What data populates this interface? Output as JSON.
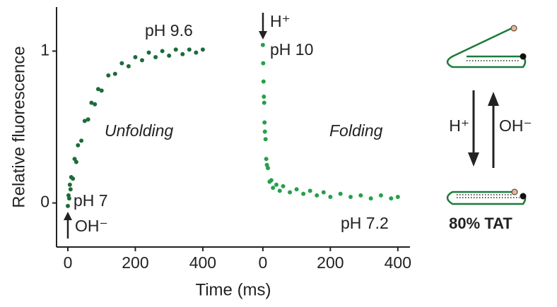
{
  "chart_data": [
    {
      "type": "scatter",
      "y_label": "Relative fluorescence",
      "x_label": "Time (ms)",
      "color": "#1d6b3a",
      "xlim": [
        -33.5,
        440
      ],
      "xticks": [
        0,
        200,
        400
      ],
      "ylim": [
        -0.29,
        1.29
      ],
      "yticks": [
        0,
        1
      ],
      "annotations": [
        "pH 9.6",
        "pH 7",
        "OH⁻",
        "Unfolding"
      ],
      "x": [
        0,
        2,
        4,
        6,
        8,
        10,
        15,
        20,
        25,
        30,
        40,
        50,
        60,
        70,
        80,
        90,
        100,
        120,
        140,
        160,
        180,
        200,
        220,
        240,
        260,
        280,
        300,
        320,
        340,
        360,
        380,
        400
      ],
      "y": [
        -0.02,
        0.05,
        0.03,
        0.12,
        0.09,
        0.17,
        0.16,
        0.29,
        0.27,
        0.38,
        0.41,
        0.54,
        0.55,
        0.66,
        0.65,
        0.75,
        0.74,
        0.84,
        0.85,
        0.92,
        0.9,
        0.96,
        0.94,
        0.99,
        0.96,
        1.0,
        0.97,
        1.01,
        0.98,
        1.01,
        0.99,
        1.01
      ]
    },
    {
      "type": "scatter",
      "color": "#26a04b",
      "xlim": [
        -138,
        436
      ],
      "xticks": [
        0,
        200,
        400
      ],
      "annotations": [
        "H⁺",
        "pH 10",
        "pH 7.2",
        "Folding"
      ],
      "x": [
        0,
        1,
        2,
        3,
        4,
        5,
        6,
        8,
        10,
        12,
        15,
        20,
        25,
        30,
        40,
        50,
        60,
        80,
        100,
        120,
        140,
        160,
        180,
        200,
        230,
        260,
        290,
        320,
        350,
        380,
        400
      ],
      "y": [
        1.04,
        0.92,
        0.8,
        0.7,
        0.66,
        0.53,
        0.47,
        0.42,
        0.29,
        0.25,
        0.23,
        0.14,
        0.15,
        0.1,
        0.12,
        0.08,
        0.11,
        0.07,
        0.09,
        0.06,
        0.08,
        0.05,
        0.07,
        0.04,
        0.06,
        0.04,
        0.05,
        0.03,
        0.05,
        0.03,
        0.04
      ]
    }
  ],
  "diagram": {
    "acid": "H⁺",
    "base": "OH⁻",
    "caption": "80% TAT"
  }
}
